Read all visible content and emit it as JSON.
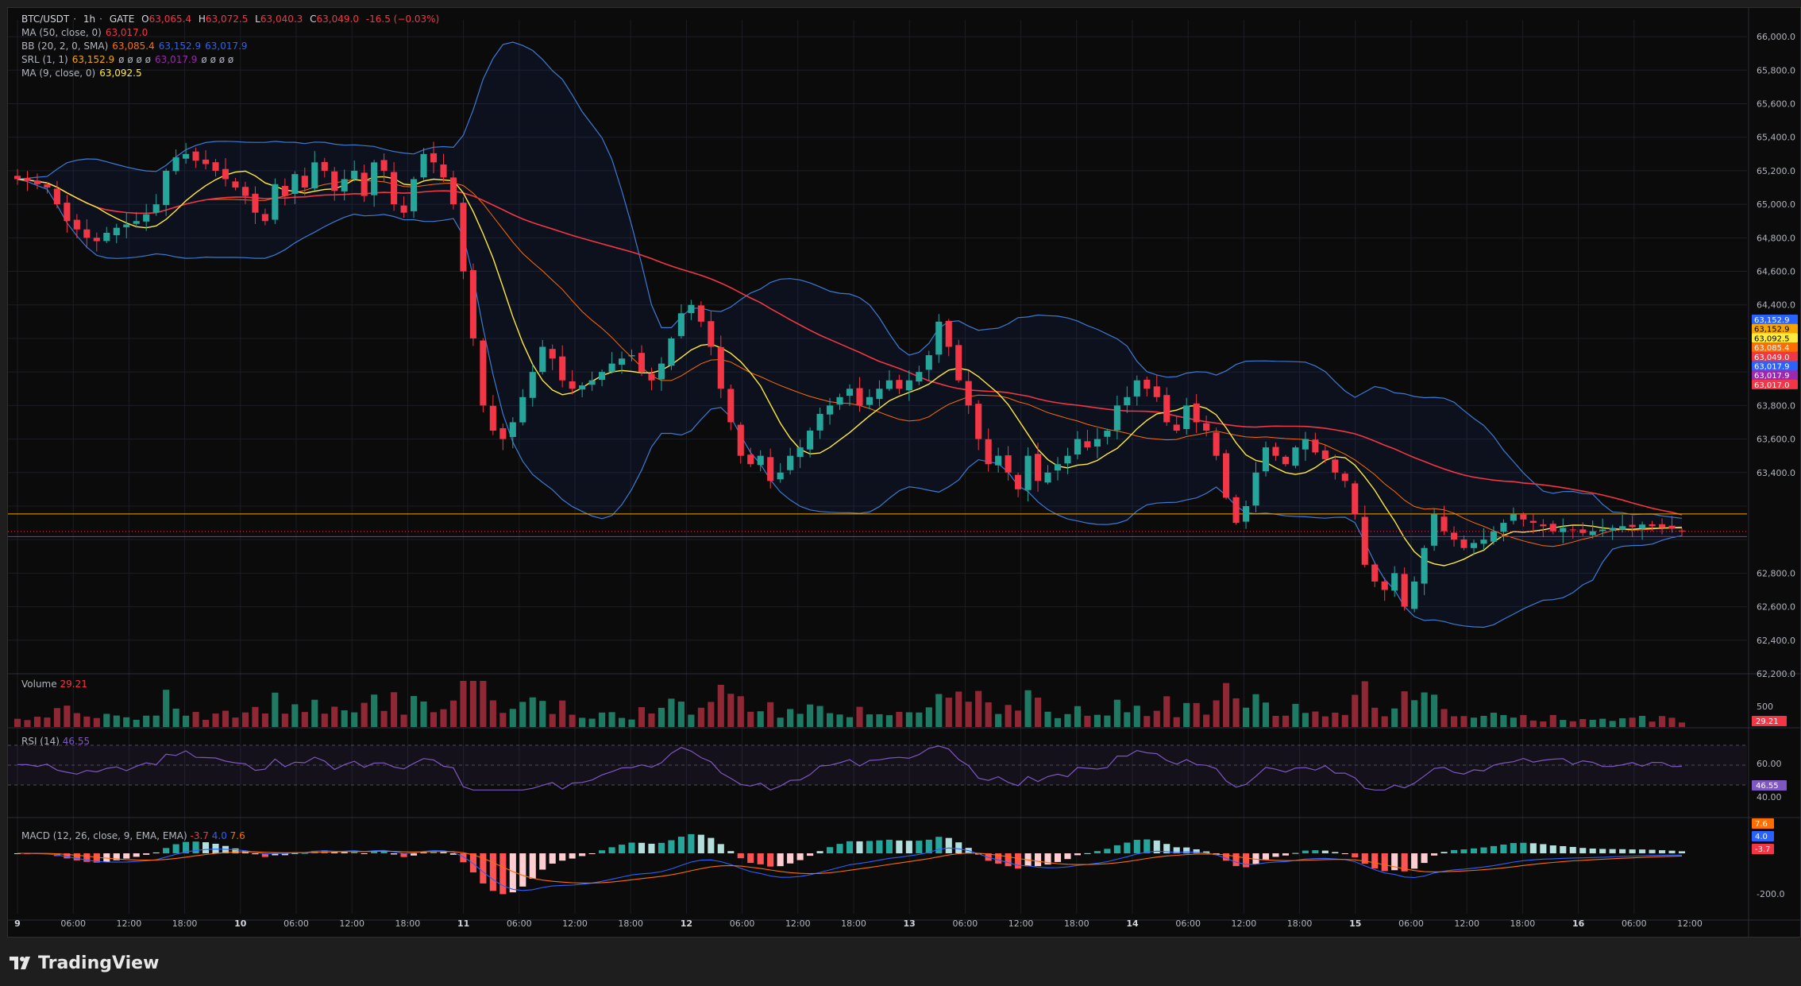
{
  "header": {
    "symbol": "BTC/USDT",
    "interval": "1h",
    "exchange": "GATE",
    "ohlc": {
      "o_label": "O",
      "o": "63,065.4",
      "h_label": "H",
      "h": "63,072.5",
      "l_label": "L",
      "l": "63,040.3",
      "c_label": "C",
      "c": "63,049.0",
      "change": "-16.5 (−0.03%)"
    }
  },
  "indicators": {
    "ma50": {
      "label": "MA (50, close, 0)",
      "value": "63,017.0",
      "color": "#f23645"
    },
    "bb": {
      "label": "BB (20, 2, 0, SMA)",
      "basis": "63,085.4",
      "upper": "63,152.9",
      "lower": "63,017.9",
      "basis_color": "#ff6d00",
      "band_color": "#2962ff"
    },
    "srl": {
      "label": "SRL (1, 1)",
      "v1": "63,152.9",
      "empties": "ø ø ø ø",
      "v2": "63,017.9",
      "empties2": "ø ø ø ø",
      "color1": "#f7a600",
      "color2": "#9c27b0"
    },
    "ma9": {
      "label": "MA (9, close, 0)",
      "value": "63,092.5",
      "color": "#ffeb3b"
    }
  },
  "volume": {
    "label": "Volume",
    "value": "29.21",
    "axis_tick": "500"
  },
  "rsi": {
    "label": "RSI (14)",
    "value": "46.55",
    "axis_ticks": [
      "60.00",
      "40.00"
    ]
  },
  "macd": {
    "label": "MACD (12, 26, close, 9, EMA, EMA)",
    "hist": "-3.7",
    "macd": "4.0",
    "signal": "7.6",
    "axis_tick": "-200.0",
    "badges": [
      "7.6",
      "4.0",
      "-3.7"
    ]
  },
  "price_axis": {
    "ticks": [
      "66,000.0",
      "65,800.0",
      "65,600.0",
      "65,400.0",
      "65,200.0",
      "65,000.0",
      "64,800.0",
      "64,600.0",
      "64,400.0",
      "64,200.0",
      "64,000.0",
      "63,800.0",
      "63,600.0",
      "63,400.0",
      "62,800.0",
      "62,600.0",
      "62,400.0",
      "62,200.0"
    ],
    "badges": [
      {
        "text": "63,152.9",
        "bg": "#2962ff"
      },
      {
        "text": "63,152.9",
        "bg": "#f7a600"
      },
      {
        "text": "63,092.5",
        "bg": "#ffeb3b"
      },
      {
        "text": "63,085.4",
        "bg": "#ff6d00"
      },
      {
        "text": "63,049.0",
        "bg": "#f23645"
      },
      {
        "text": "63,017.9",
        "bg": "#2962ff"
      },
      {
        "text": "63,017.9",
        "bg": "#9c27b0"
      },
      {
        "text": "63,017.0",
        "bg": "#f23645"
      }
    ]
  },
  "time_axis": [
    "9",
    "06:00",
    "12:00",
    "18:00",
    "10",
    "06:00",
    "12:00",
    "18:00",
    "11",
    "06:00",
    "12:00",
    "18:00",
    "12",
    "06:00",
    "12:00",
    "18:00",
    "13",
    "06:00",
    "12:00",
    "18:00",
    "14",
    "06:00",
    "12:00",
    "18:00",
    "15",
    "06:00",
    "12:00",
    "18:00",
    "16",
    "06:00",
    "12:00"
  ],
  "brand": {
    "name": "TradingView"
  },
  "colors": {
    "up": "#26a69a",
    "down": "#f23645",
    "bg": "#0b0b0c"
  },
  "chart_data": {
    "type": "candlestick",
    "title": "BTC/USDT · 1h · GATE",
    "ylim": [
      62200,
      66100
    ],
    "x_start": "9 00:00",
    "x_interval": "1h",
    "ohlc_close_path_hourly": [
      65150,
      65140,
      65120,
      65100,
      65000,
      64900,
      64850,
      64800,
      64780,
      64830,
      64860,
      64880,
      64900,
      64940,
      65000,
      65200,
      65280,
      65300,
      65260,
      65240,
      65200,
      65150,
      65100,
      65050,
      64950,
      64900,
      65120,
      65050,
      65180,
      65100,
      65250,
      65200,
      65080,
      65150,
      65200,
      65050,
      65250,
      65200,
      65000,
      64950,
      65150,
      65300,
      65250,
      65160,
      65000,
      64600,
      64200,
      63800,
      63650,
      63600,
      63700,
      63850,
      64000,
      64150,
      64080,
      63950,
      63900,
      63920,
      63950,
      64000,
      64050,
      64080,
      64100,
      64000,
      63950,
      64050,
      64200,
      64350,
      64400,
      64300,
      64150,
      63900,
      63700,
      63500,
      63450,
      63500,
      63350,
      63400,
      63500,
      63550,
      63650,
      63750,
      63800,
      63850,
      63900,
      63800,
      63850,
      63900,
      63950,
      63900,
      63950,
      64000,
      64100,
      64300,
      64150,
      63950,
      63800,
      63600,
      63450,
      63500,
      63400,
      63300,
      63500,
      63350,
      63400,
      63450,
      63500,
      63600,
      63550,
      63600,
      63650,
      63800,
      63850,
      63950,
      63900,
      63850,
      63700,
      63650,
      63800,
      63700,
      63650,
      63500,
      63250,
      63100,
      63200,
      63400,
      63550,
      63500,
      63450,
      63550,
      63600,
      63520,
      63480,
      63400,
      63350,
      63150,
      62850,
      62750,
      62700,
      62800,
      62600,
      62750,
      62950,
      63150,
      63050,
      63000,
      62950,
      62980,
      63000,
      63050,
      63100,
      63150,
      63120,
      63100,
      63080,
      63050,
      63070,
      63060,
      63040,
      63050,
      63060,
      63070,
      63080,
      63075,
      63090,
      63080,
      63070,
      63065,
      63049
    ],
    "series": [
      {
        "name": "MA (50, close, 0)",
        "last": 63017.0
      },
      {
        "name": "BB (20, 2, 0, SMA)",
        "basis": 63085.4,
        "upper": 63152.9,
        "lower": 63017.9
      },
      {
        "name": "MA (9, close, 0)",
        "last": 63092.5
      }
    ],
    "srl_levels": [
      63152.9,
      63017.9
    ],
    "last_close": 63049.0
  }
}
